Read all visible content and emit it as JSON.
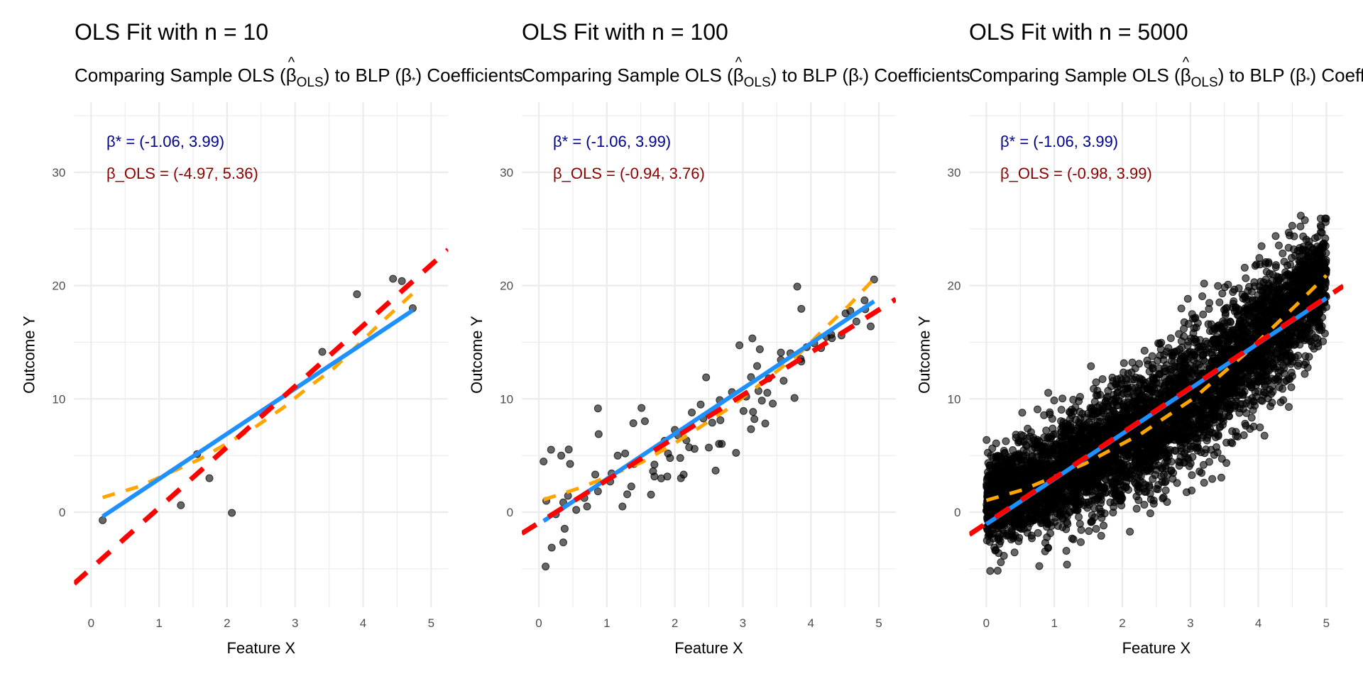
{
  "colors": {
    "beta_star_line": "#1E90FF",
    "beta_ols_line": "#FF0000",
    "smooth_line": "#FFA500",
    "beta_star_text": "#00008B",
    "beta_ols_text": "#8B0000",
    "points": "#000000",
    "grid": "#EBEBEB"
  },
  "chart_data": [
    {
      "type": "scatter",
      "title": "OLS Fit with n = 10",
      "subtitle": {
        "prefix": "Comparing Sample OLS (",
        "beta_hat": "β",
        "beta_hat_sub": "OLS",
        "middle": ") to BLP (",
        "beta_star": "β",
        "star_sub": "*",
        "suffix": ") Coefficients"
      },
      "xlabel": "Feature X",
      "ylabel": "Outcome Y",
      "xlim": [
        -0.25,
        5.25
      ],
      "ylim": [
        -8.4,
        36.2
      ],
      "x_ticks": [
        "0",
        "1",
        "2",
        "3",
        "4",
        "5"
      ],
      "y_ticks": [
        "0",
        "10",
        "20",
        "30"
      ],
      "grid": true,
      "annotations": {
        "beta_star": "β* = (-1.06, 3.99)",
        "beta_ols": "β_OLS = (-4.97, 5.36)"
      },
      "beta_star": {
        "intercept": -1.06,
        "slope": 3.99,
        "line_style": "solid"
      },
      "beta_ols": {
        "intercept": -4.97,
        "slope": 5.36,
        "line_style": "dashed"
      },
      "smooth": {
        "line_style": "dashed",
        "x": [
          0.17,
          0.71,
          1.6,
          2.43,
          2.82,
          3.19,
          3.56,
          4.24,
          4.73
        ],
        "y": [
          1.3,
          2.27,
          4.68,
          7.58,
          9.2,
          11.0,
          12.65,
          16.6,
          19.3
        ]
      },
      "points": [
        [
          0.17,
          -0.71
        ],
        [
          1.32,
          0.61
        ],
        [
          1.56,
          5.13
        ],
        [
          1.74,
          3.0
        ],
        [
          2.07,
          -0.06
        ],
        [
          3.4,
          14.15
        ],
        [
          3.91,
          19.24
        ],
        [
          4.44,
          20.6
        ],
        [
          4.57,
          20.4
        ],
        [
          4.73,
          18.0
        ]
      ]
    },
    {
      "type": "scatter",
      "title": "OLS Fit with n = 100",
      "subtitle": {
        "prefix": "Comparing Sample OLS (",
        "beta_hat": "β",
        "beta_hat_sub": "OLS",
        "middle": ") to BLP (",
        "beta_star": "β",
        "star_sub": "*",
        "suffix": ") Coefficients"
      },
      "xlabel": "Feature X",
      "ylabel": "Outcome Y",
      "xlim": [
        -0.25,
        5.25
      ],
      "ylim": [
        -8.4,
        36.2
      ],
      "x_ticks": [
        "0",
        "1",
        "2",
        "3",
        "4",
        "5"
      ],
      "y_ticks": [
        "0",
        "10",
        "20",
        "30"
      ],
      "grid": true,
      "annotations": {
        "beta_star": "β* = (-1.06, 3.99)",
        "beta_ols": "β_OLS = (-0.94, 3.76)"
      },
      "beta_star": {
        "intercept": -1.06,
        "slope": 3.99,
        "line_style": "solid"
      },
      "beta_ols": {
        "intercept": -0.94,
        "slope": 3.76,
        "line_style": "dashed"
      },
      "smooth": {
        "line_style": "dashed",
        "x": [
          0.07,
          0.64,
          1.51,
          1.93,
          2.35,
          2.75,
          3.12,
          3.5,
          3.87,
          4.2,
          4.55,
          4.93
        ],
        "y": [
          1.1,
          2.21,
          4.4,
          5.82,
          7.43,
          9.0,
          10.66,
          12.44,
          14.21,
          16.2,
          18.18,
          20.6
        ]
      },
      "points": [
        [
          0.07,
          4.47
        ],
        [
          0.18,
          5.51
        ],
        [
          0.33,
          4.99
        ],
        [
          0.44,
          5.53
        ],
        [
          0.46,
          4.26
        ],
        [
          0.11,
          1.0
        ],
        [
          0.43,
          1.44
        ],
        [
          0.36,
          0.86
        ],
        [
          0.25,
          -0.19
        ],
        [
          0.38,
          -1.46
        ],
        [
          0.19,
          -3.13
        ],
        [
          0.36,
          -2.67
        ],
        [
          0.1,
          -4.8
        ],
        [
          0.87,
          9.16
        ],
        [
          0.88,
          6.89
        ],
        [
          0.83,
          3.32
        ],
        [
          0.87,
          1.84
        ],
        [
          0.67,
          1.25
        ],
        [
          0.71,
          0.5
        ],
        [
          1.07,
          3.42
        ],
        [
          1.16,
          4.99
        ],
        [
          1.27,
          5.18
        ],
        [
          1.39,
          7.85
        ],
        [
          1.51,
          9.2
        ],
        [
          1.56,
          8.03
        ],
        [
          1.36,
          2.27
        ],
        [
          1.3,
          1.58
        ],
        [
          1.23,
          0.5
        ],
        [
          1.4,
          4.26
        ],
        [
          1.7,
          4.2
        ],
        [
          1.68,
          3.61
        ],
        [
          1.7,
          3.15
        ],
        [
          1.8,
          2.98
        ],
        [
          1.89,
          3.15
        ],
        [
          1.65,
          1.55
        ],
        [
          1.9,
          5.18
        ],
        [
          1.93,
          4.78
        ],
        [
          2.08,
          4.78
        ],
        [
          2.13,
          3.32
        ],
        [
          2.09,
          3.0
        ],
        [
          2.0,
          7.26
        ],
        [
          2.05,
          6.76
        ],
        [
          2.17,
          6.34
        ],
        [
          2.21,
          5.72
        ],
        [
          2.29,
          5.59
        ],
        [
          2.38,
          9.5
        ],
        [
          2.42,
          8.27
        ],
        [
          2.46,
          11.9
        ],
        [
          2.5,
          5.7
        ],
        [
          2.66,
          9.89
        ],
        [
          2.84,
          10.6
        ],
        [
          2.67,
          8.12
        ],
        [
          2.65,
          6.03
        ],
        [
          2.69,
          6.03
        ],
        [
          2.6,
          3.67
        ],
        [
          2.9,
          5.24
        ],
        [
          2.95,
          14.73
        ],
        [
          3.14,
          15.34
        ],
        [
          3.25,
          14.38
        ],
        [
          3.21,
          12.9
        ],
        [
          3.12,
          11.92
        ],
        [
          3.23,
          10.7
        ],
        [
          3.36,
          10.54
        ],
        [
          3.28,
          9.85
        ],
        [
          3.44,
          9.58
        ],
        [
          3.01,
          8.93
        ],
        [
          3.15,
          8.85
        ],
        [
          3.17,
          8.22
        ],
        [
          3.33,
          7.83
        ],
        [
          3.12,
          7.33
        ],
        [
          3.38,
          11.81
        ],
        [
          3.6,
          11.6
        ],
        [
          3.76,
          10.08
        ],
        [
          3.56,
          14.09
        ],
        [
          3.56,
          13.44
        ],
        [
          3.7,
          14.03
        ],
        [
          3.85,
          13.53
        ],
        [
          3.86,
          13.3
        ],
        [
          3.94,
          14.57
        ],
        [
          3.8,
          19.91
        ],
        [
          3.86,
          17.95
        ],
        [
          4.15,
          14.48
        ],
        [
          4.23,
          15.47
        ],
        [
          4.31,
          15.36
        ],
        [
          4.3,
          15.67
        ],
        [
          4.51,
          17.55
        ],
        [
          4.58,
          17.76
        ],
        [
          4.67,
          16.83
        ],
        [
          4.79,
          18.7
        ],
        [
          4.8,
          17.91
        ],
        [
          4.88,
          16.4
        ],
        [
          4.93,
          20.54
        ],
        [
          2.55,
          7.9
        ],
        [
          1.05,
          2.7
        ],
        [
          0.55,
          0.2
        ],
        [
          3.05,
          10.2
        ],
        [
          4.05,
          14.9
        ],
        [
          4.45,
          15.6
        ],
        [
          2.25,
          8.8
        ],
        [
          1.85,
          6.3
        ]
      ]
    },
    {
      "type": "scatter",
      "title": "OLS Fit with n = 5000",
      "subtitle": {
        "prefix": "Comparing Sample OLS (",
        "beta_hat": "β",
        "beta_hat_sub": "OLS",
        "middle": ") to BLP (",
        "beta_star": "β",
        "star_sub": "*",
        "suffix": ") Coefficients"
      },
      "xlabel": "Feature X",
      "ylabel": "Outcome Y",
      "xlim": [
        -0.25,
        5.25
      ],
      "ylim": [
        -8.4,
        36.2
      ],
      "x_ticks": [
        "0",
        "1",
        "2",
        "3",
        "4",
        "5"
      ],
      "y_ticks": [
        "0",
        "10",
        "20",
        "30"
      ],
      "grid": true,
      "n": 5000,
      "annotations": {
        "beta_star": "β* = (-1.06, 3.99)",
        "beta_ols": "β_OLS = (-0.98, 3.99)"
      },
      "beta_star": {
        "intercept": -1.06,
        "slope": 3.99,
        "line_style": "solid"
      },
      "beta_ols": {
        "intercept": -0.98,
        "slope": 3.99,
        "line_style": "dashed"
      },
      "smooth": {
        "line_style": "dashed",
        "x": [
          0.0,
          0.55,
          1.45,
          2.27,
          3.06,
          3.81,
          4.56,
          5.0
        ],
        "y": [
          1.04,
          2.0,
          4.28,
          6.9,
          10.1,
          14.0,
          18.3,
          20.9
        ]
      },
      "point_cloud_range": {
        "x": [
          0,
          1,
          2,
          3,
          4,
          5
        ],
        "y_min": [
          -5.2,
          -5.0,
          -3.0,
          1.0,
          5.5,
          12.0
        ],
        "y_max": [
          7.5,
          11.0,
          14.5,
          19.0,
          24.8,
          27.5
        ]
      }
    }
  ]
}
